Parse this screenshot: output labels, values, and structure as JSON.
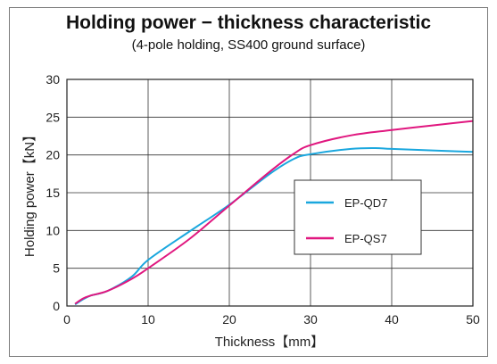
{
  "chart_data": {
    "type": "line",
    "title": "Holding power − thickness characteristic",
    "subtitle": "(4-pole holding, SS400 ground surface)",
    "xlabel": "Thickness【mm】",
    "ylabel": "Holding power【kN】",
    "xlim": [
      0,
      50
    ],
    "ylim": [
      0,
      30
    ],
    "xticks": [
      0,
      10,
      20,
      30,
      40,
      50
    ],
    "yticks": [
      0,
      5,
      10,
      15,
      20,
      25,
      30
    ],
    "grid": true,
    "legend_position": "center-right",
    "series": [
      {
        "name": "EP-QD7",
        "color": "#1aa7de",
        "x": [
          1,
          2,
          3,
          5,
          8,
          10,
          15,
          20,
          25,
          28,
          30,
          35,
          38,
          40,
          45,
          50
        ],
        "y": [
          0.2,
          0.9,
          1.4,
          2.0,
          3.9,
          6.1,
          9.8,
          13.4,
          17.5,
          19.5,
          20.1,
          20.8,
          20.9,
          20.8,
          20.6,
          20.4
        ]
      },
      {
        "name": "EP-QS7",
        "color": "#e0177f",
        "x": [
          1,
          2,
          3,
          5,
          8,
          10,
          15,
          20,
          25,
          28,
          30,
          35,
          40,
          45,
          50
        ],
        "y": [
          0.3,
          1.0,
          1.4,
          2.0,
          3.6,
          5.0,
          8.8,
          13.3,
          17.8,
          20.2,
          21.3,
          22.6,
          23.3,
          23.9,
          24.5
        ]
      }
    ]
  }
}
